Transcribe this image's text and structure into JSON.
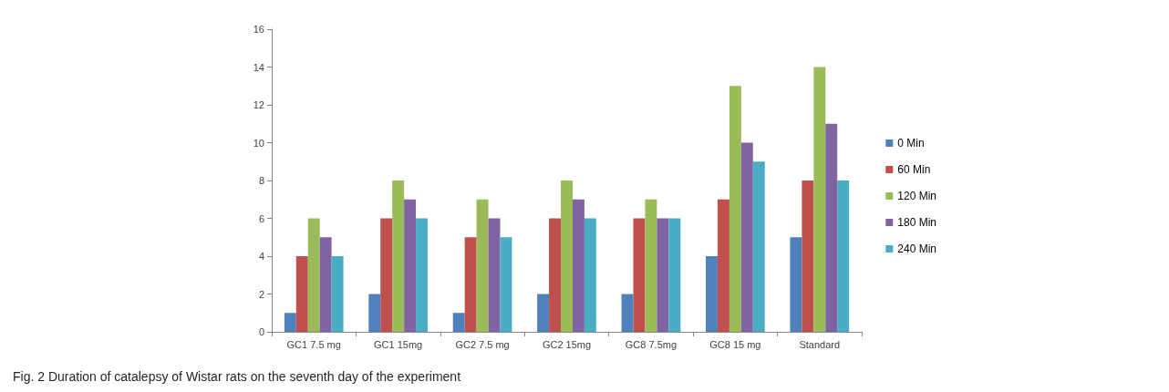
{
  "chart_data": {
    "type": "bar",
    "categories": [
      "GC1 7.5 mg",
      "GC1 15mg",
      "GC2 7.5 mg",
      "GC2 15mg",
      "GC8 7.5mg",
      "GC8 15 mg",
      "Standard"
    ],
    "series": [
      {
        "name": "0 Min",
        "color": "#4f81bd",
        "values": [
          1,
          2,
          1,
          2,
          2,
          4,
          5
        ]
      },
      {
        "name": "60 Min",
        "color": "#c0504d",
        "values": [
          4,
          6,
          5,
          6,
          6,
          7,
          8
        ]
      },
      {
        "name": "120 Min",
        "color": "#9bbb59",
        "values": [
          6,
          8,
          7,
          8,
          7,
          13,
          14
        ]
      },
      {
        "name": "180 Min",
        "color": "#8064a2",
        "values": [
          5,
          7,
          6,
          7,
          6,
          10,
          11
        ]
      },
      {
        "name": "240 Min",
        "color": "#4bacc6",
        "values": [
          4,
          6,
          5,
          6,
          6,
          9,
          8
        ]
      }
    ],
    "ylim": [
      0,
      16
    ],
    "yticks": [
      0,
      2,
      4,
      6,
      8,
      10,
      12,
      14,
      16
    ],
    "grid": false,
    "legend": "right",
    "annotations": [
      "Fig. 2 Duration of catalepsy of Wistar rats on the seventh day of the experiment"
    ]
  }
}
